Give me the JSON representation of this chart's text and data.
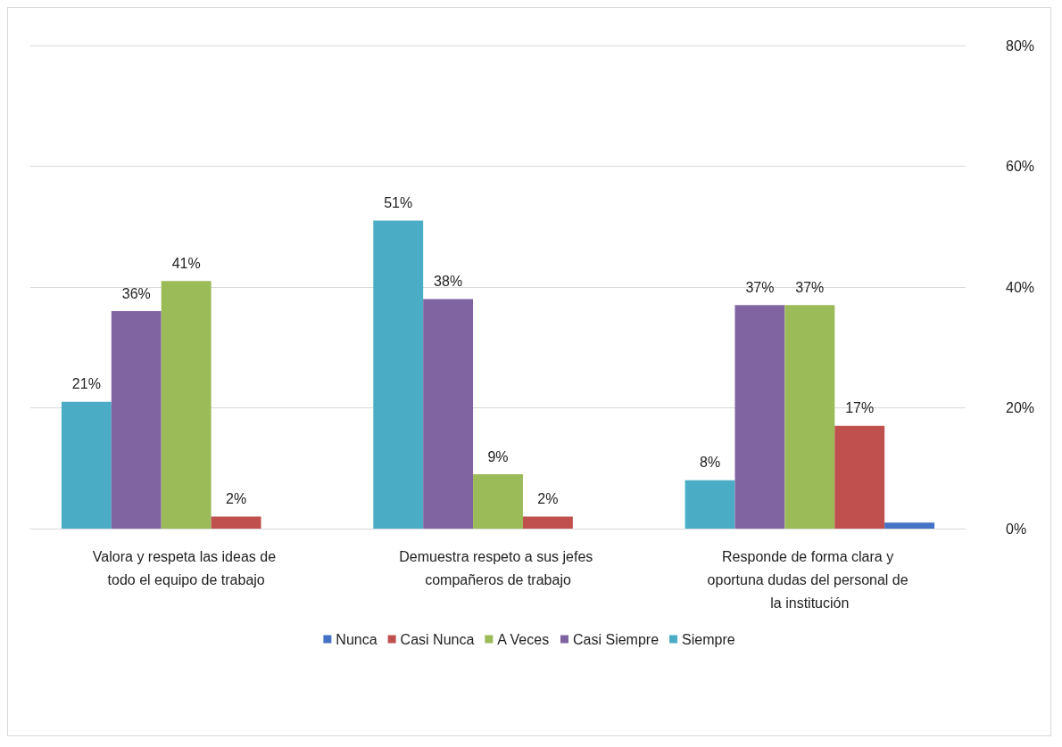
{
  "chart_data": {
    "type": "bar",
    "categories": [
      "Valora y respeta las ideas de todo el equipo de trabajo",
      "Demuestra respeto a sus jefes compañeros de trabajo",
      "Responde de forma clara y oportuna dudas del personal de la institución"
    ],
    "series": [
      {
        "name": "Nunca",
        "color": "#4472c4",
        "values": [
          null,
          null,
          1
        ],
        "value_labels": [
          null,
          null,
          null
        ]
      },
      {
        "name": "Casi Nunca",
        "color": "#c0504d",
        "values": [
          2,
          2,
          17
        ],
        "value_labels": [
          "2%",
          "2%",
          "17%"
        ]
      },
      {
        "name": "A Veces",
        "color": "#9bbb59",
        "values": [
          41,
          9,
          37
        ],
        "value_labels": [
          "41%",
          "9%",
          "37%"
        ]
      },
      {
        "name": "Casi Siempre",
        "color": "#8064a2",
        "values": [
          36,
          38,
          37
        ],
        "value_labels": [
          "36%",
          "38%",
          "37%"
        ]
      },
      {
        "name": "Siempre",
        "color": "#4bacc6",
        "values": [
          21,
          51,
          8
        ],
        "value_labels": [
          "21%",
          "51%",
          "8%"
        ]
      }
    ],
    "ylim": [
      0,
      80
    ],
    "yticks": [
      {
        "value": 0,
        "label": "0%"
      },
      {
        "value": 20,
        "label": "20%"
      },
      {
        "value": 40,
        "label": "40%"
      },
      {
        "value": 60,
        "label": "60%"
      },
      {
        "value": 80,
        "label": "80%"
      }
    ],
    "grid": "y",
    "legend": "bottom"
  }
}
